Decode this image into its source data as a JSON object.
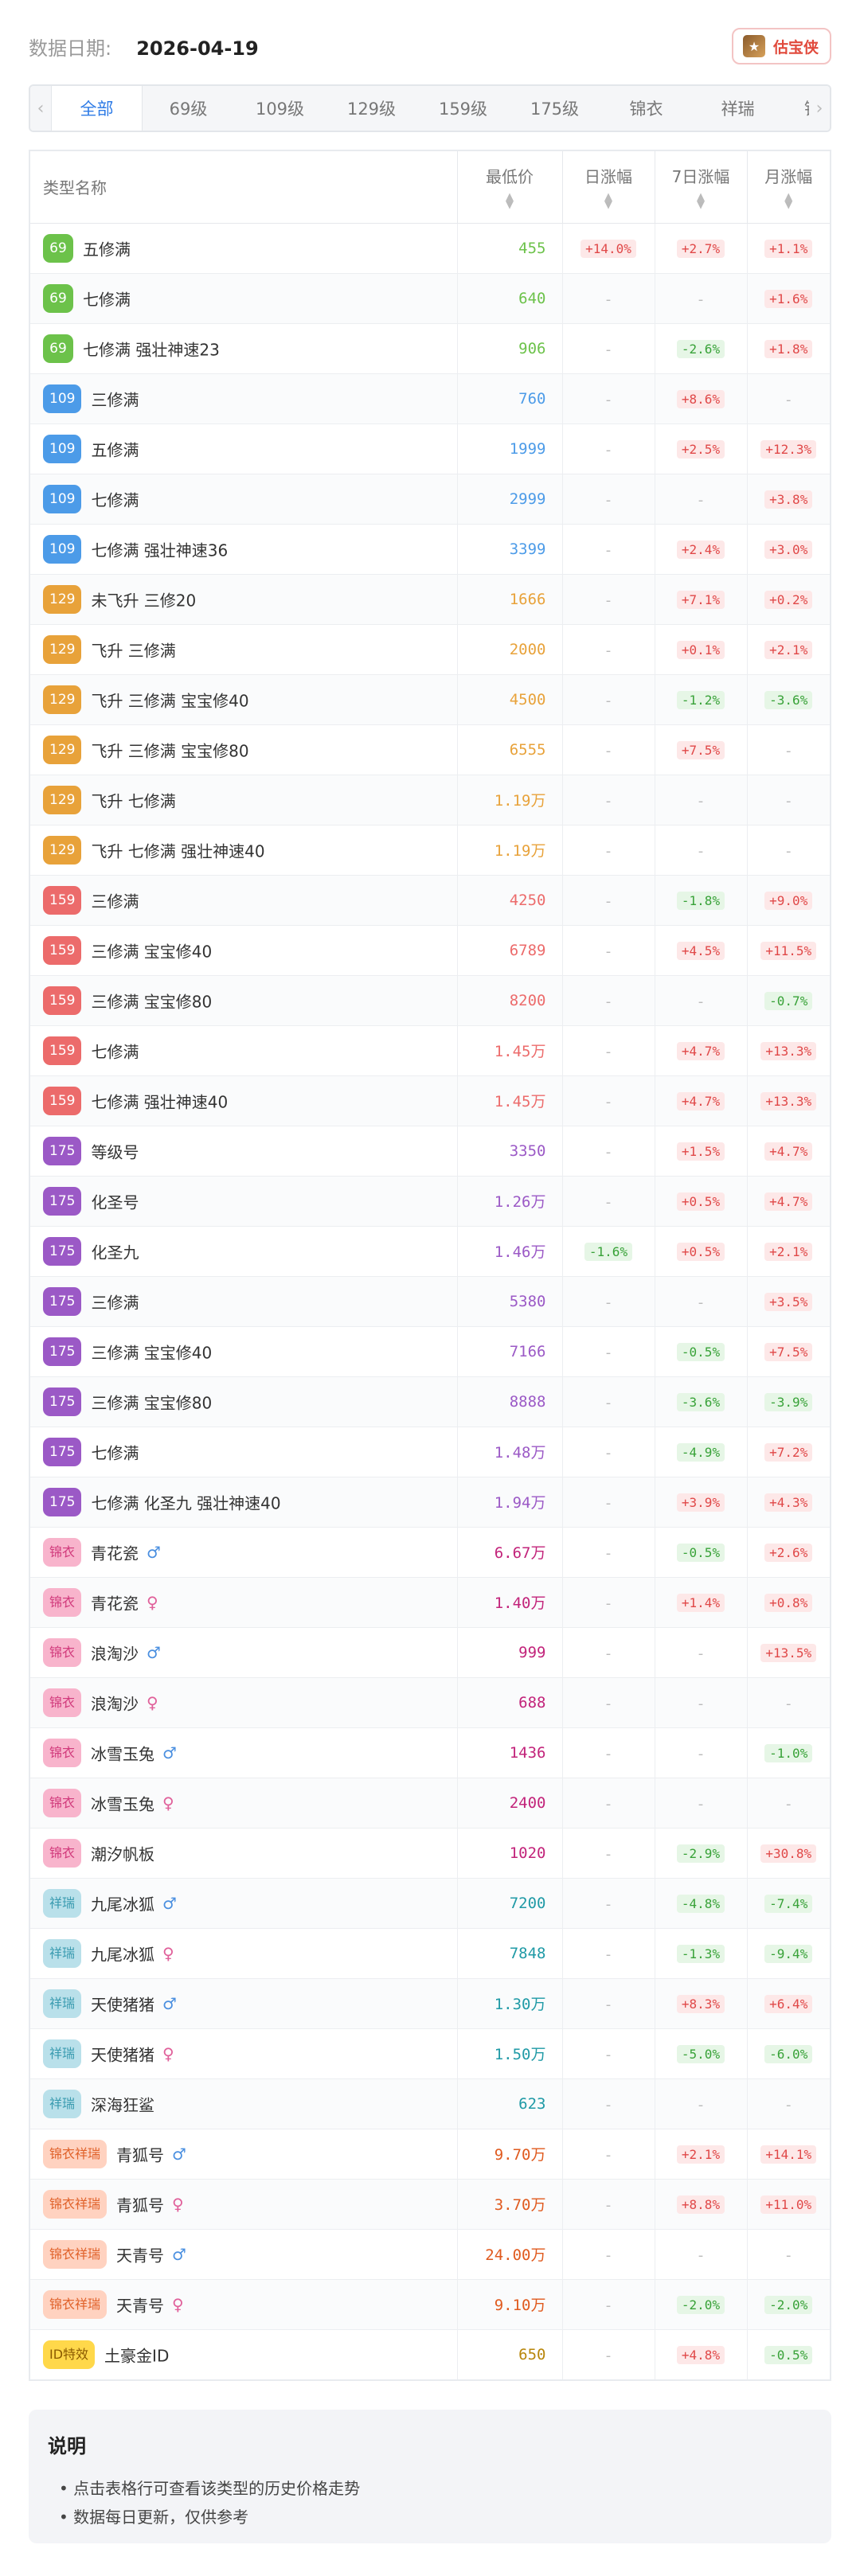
{
  "header": {
    "date_label": "数据日期:",
    "date_value": "2026-04-19",
    "brand_name": "估宝侠",
    "brand_icon": "treasure-logo-icon"
  },
  "tabs": [
    "全部",
    "69级",
    "109级",
    "129级",
    "159级",
    "175级",
    "锦衣",
    "祥瑞",
    "锦衣祥"
  ],
  "active_tab": "全部",
  "table": {
    "headers": {
      "name": "类型名称",
      "price": "最低价",
      "day": "日涨幅",
      "week": "7日涨幅",
      "month": "月涨幅"
    },
    "colors": {
      "69": "#6cc24a",
      "109": "#4c9be8",
      "129": "#e8a23a",
      "159": "#ec6b6b",
      "175": "#9b59c6",
      "锦衣": "#f8b4cc",
      "祥瑞": "#b9e0ea",
      "锦衣祥瑞": "#ffd2c0",
      "ID特效": "#ffd84a"
    },
    "rows": [
      {
        "badge": "69",
        "cls": "69",
        "name": "五修满",
        "gender": "",
        "price": "455",
        "day": "+14.0%",
        "week": "+2.7%",
        "month": "+1.1%"
      },
      {
        "badge": "69",
        "cls": "69",
        "name": "七修满",
        "gender": "",
        "price": "640",
        "day": "-",
        "week": "-",
        "month": "+1.6%"
      },
      {
        "badge": "69",
        "cls": "69",
        "name": "七修满 强壮神速23",
        "gender": "",
        "price": "906",
        "day": "-",
        "week": "-2.6%",
        "month": "+1.8%"
      },
      {
        "badge": "109",
        "cls": "109",
        "name": "三修满",
        "gender": "",
        "price": "760",
        "day": "-",
        "week": "+8.6%",
        "month": "-"
      },
      {
        "badge": "109",
        "cls": "109",
        "name": "五修满",
        "gender": "",
        "price": "1999",
        "day": "-",
        "week": "+2.5%",
        "month": "+12.3%"
      },
      {
        "badge": "109",
        "cls": "109",
        "name": "七修满",
        "gender": "",
        "price": "2999",
        "day": "-",
        "week": "-",
        "month": "+3.8%"
      },
      {
        "badge": "109",
        "cls": "109",
        "name": "七修满 强壮神速36",
        "gender": "",
        "price": "3399",
        "day": "-",
        "week": "+2.4%",
        "month": "+3.0%"
      },
      {
        "badge": "129",
        "cls": "129",
        "name": "未飞升 三修20",
        "gender": "",
        "price": "1666",
        "day": "-",
        "week": "+7.1%",
        "month": "+0.2%"
      },
      {
        "badge": "129",
        "cls": "129",
        "name": "飞升 三修满",
        "gender": "",
        "price": "2000",
        "day": "-",
        "week": "+0.1%",
        "month": "+2.1%"
      },
      {
        "badge": "129",
        "cls": "129",
        "name": "飞升 三修满 宝宝修40",
        "gender": "",
        "price": "4500",
        "day": "-",
        "week": "-1.2%",
        "month": "-3.6%"
      },
      {
        "badge": "129",
        "cls": "129",
        "name": "飞升 三修满 宝宝修80",
        "gender": "",
        "price": "6555",
        "day": "-",
        "week": "+7.5%",
        "month": "-"
      },
      {
        "badge": "129",
        "cls": "129",
        "name": "飞升 七修满",
        "gender": "",
        "price": "1.19万",
        "day": "-",
        "week": "-",
        "month": "-"
      },
      {
        "badge": "129",
        "cls": "129",
        "name": "飞升 七修满 强壮神速40",
        "gender": "",
        "price": "1.19万",
        "day": "-",
        "week": "-",
        "month": "-"
      },
      {
        "badge": "159",
        "cls": "159",
        "name": "三修满",
        "gender": "",
        "price": "4250",
        "day": "-",
        "week": "-1.8%",
        "month": "+9.0%"
      },
      {
        "badge": "159",
        "cls": "159",
        "name": "三修满 宝宝修40",
        "gender": "",
        "price": "6789",
        "day": "-",
        "week": "+4.5%",
        "month": "+11.5%"
      },
      {
        "badge": "159",
        "cls": "159",
        "name": "三修满 宝宝修80",
        "gender": "",
        "price": "8200",
        "day": "-",
        "week": "-",
        "month": "-0.7%"
      },
      {
        "badge": "159",
        "cls": "159",
        "name": "七修满",
        "gender": "",
        "price": "1.45万",
        "day": "-",
        "week": "+4.7%",
        "month": "+13.3%"
      },
      {
        "badge": "159",
        "cls": "159",
        "name": "七修满 强壮神速40",
        "gender": "",
        "price": "1.45万",
        "day": "-",
        "week": "+4.7%",
        "month": "+13.3%"
      },
      {
        "badge": "175",
        "cls": "175",
        "name": "等级号",
        "gender": "",
        "price": "3350",
        "day": "-",
        "week": "+1.5%",
        "month": "+4.7%"
      },
      {
        "badge": "175",
        "cls": "175",
        "name": "化圣号",
        "gender": "",
        "price": "1.26万",
        "day": "-",
        "week": "+0.5%",
        "month": "+4.7%"
      },
      {
        "badge": "175",
        "cls": "175",
        "name": "化圣九",
        "gender": "",
        "price": "1.46万",
        "day": "-1.6%",
        "week": "+0.5%",
        "month": "+2.1%"
      },
      {
        "badge": "175",
        "cls": "175",
        "name": "三修满",
        "gender": "",
        "price": "5380",
        "day": "-",
        "week": "-",
        "month": "+3.5%"
      },
      {
        "badge": "175",
        "cls": "175",
        "name": "三修满 宝宝修40",
        "gender": "",
        "price": "7166",
        "day": "-",
        "week": "-0.5%",
        "month": "+7.5%"
      },
      {
        "badge": "175",
        "cls": "175",
        "name": "三修满 宝宝修80",
        "gender": "",
        "price": "8888",
        "day": "-",
        "week": "-3.6%",
        "month": "-3.9%"
      },
      {
        "badge": "175",
        "cls": "175",
        "name": "七修满",
        "gender": "",
        "price": "1.48万",
        "day": "-",
        "week": "-4.9%",
        "month": "+7.2%"
      },
      {
        "badge": "175",
        "cls": "175",
        "name": "七修满 化圣九 强壮神速40",
        "gender": "",
        "price": "1.94万",
        "day": "-",
        "week": "+3.9%",
        "month": "+4.3%"
      },
      {
        "badge": "锦衣",
        "cls": "锦衣",
        "name": "青花瓷",
        "gender": "♂",
        "price": "6.67万",
        "day": "-",
        "week": "-0.5%",
        "month": "+2.6%"
      },
      {
        "badge": "锦衣",
        "cls": "锦衣",
        "name": "青花瓷",
        "gender": "♀",
        "price": "1.40万",
        "day": "-",
        "week": "+1.4%",
        "month": "+0.8%"
      },
      {
        "badge": "锦衣",
        "cls": "锦衣",
        "name": "浪淘沙",
        "gender": "♂",
        "price": "999",
        "day": "-",
        "week": "-",
        "month": "+13.5%"
      },
      {
        "badge": "锦衣",
        "cls": "锦衣",
        "name": "浪淘沙",
        "gender": "♀",
        "price": "688",
        "day": "-",
        "week": "-",
        "month": "-"
      },
      {
        "badge": "锦衣",
        "cls": "锦衣",
        "name": "冰雪玉兔",
        "gender": "♂",
        "price": "1436",
        "day": "-",
        "week": "-",
        "month": "-1.0%"
      },
      {
        "badge": "锦衣",
        "cls": "锦衣",
        "name": "冰雪玉兔",
        "gender": "♀",
        "price": "2400",
        "day": "-",
        "week": "-",
        "month": "-"
      },
      {
        "badge": "锦衣",
        "cls": "锦衣",
        "name": "潮汐帆板",
        "gender": "",
        "price": "1020",
        "day": "-",
        "week": "-2.9%",
        "month": "+30.8%"
      },
      {
        "badge": "祥瑞",
        "cls": "祥瑞",
        "name": "九尾冰狐",
        "gender": "♂",
        "price": "7200",
        "day": "-",
        "week": "-4.8%",
        "month": "-7.4%"
      },
      {
        "badge": "祥瑞",
        "cls": "祥瑞",
        "name": "九尾冰狐",
        "gender": "♀",
        "price": "7848",
        "day": "-",
        "week": "-1.3%",
        "month": "-9.4%"
      },
      {
        "badge": "祥瑞",
        "cls": "祥瑞",
        "name": "天使猪猪",
        "gender": "♂",
        "price": "1.30万",
        "day": "-",
        "week": "+8.3%",
        "month": "+6.4%"
      },
      {
        "badge": "祥瑞",
        "cls": "祥瑞",
        "name": "天使猪猪",
        "gender": "♀",
        "price": "1.50万",
        "day": "-",
        "week": "-5.0%",
        "month": "-6.0%"
      },
      {
        "badge": "祥瑞",
        "cls": "祥瑞",
        "name": "深海狂鲨",
        "gender": "",
        "price": "623",
        "day": "-",
        "week": "-",
        "month": "-"
      },
      {
        "badge": "锦衣祥瑞",
        "cls": "锦衣祥瑞",
        "name": "青狐号",
        "gender": "♂",
        "price": "9.70万",
        "day": "-",
        "week": "+2.1%",
        "month": "+14.1%"
      },
      {
        "badge": "锦衣祥瑞",
        "cls": "锦衣祥瑞",
        "name": "青狐号",
        "gender": "♀",
        "price": "3.70万",
        "day": "-",
        "week": "+8.8%",
        "month": "+11.0%"
      },
      {
        "badge": "锦衣祥瑞",
        "cls": "锦衣祥瑞",
        "name": "天青号",
        "gender": "♂",
        "price": "24.00万",
        "day": "-",
        "week": "-",
        "month": "-"
      },
      {
        "badge": "锦衣祥瑞",
        "cls": "锦衣祥瑞",
        "name": "天青号",
        "gender": "♀",
        "price": "9.10万",
        "day": "-",
        "week": "-2.0%",
        "month": "-2.0%"
      },
      {
        "badge": "ID特效",
        "cls": "ID特效",
        "name": "土豪金ID",
        "gender": "",
        "price": "650",
        "day": "-",
        "week": "+4.8%",
        "month": "-0.5%"
      }
    ]
  },
  "notes": {
    "title": "说明",
    "items": [
      "点击表格行可查看该类型的历史价格走势",
      "数据每日更新，仅供参考"
    ]
  }
}
